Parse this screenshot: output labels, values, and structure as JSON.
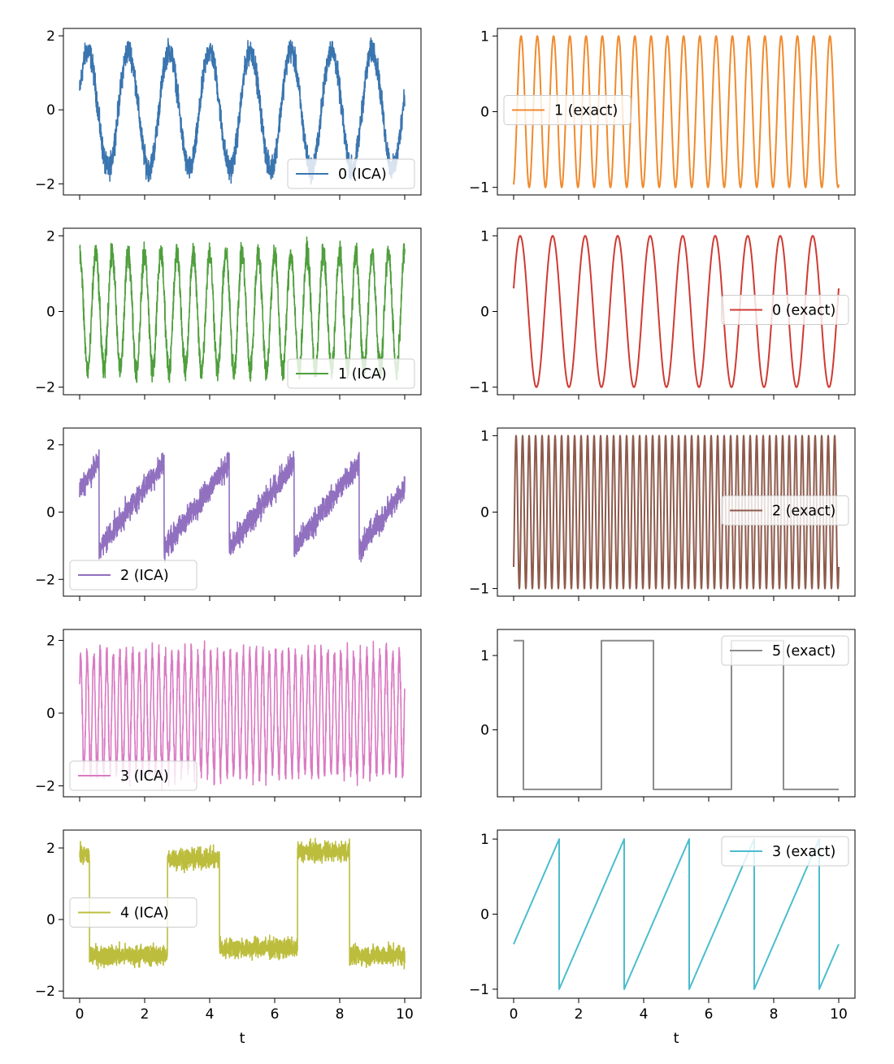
{
  "chart_data": [
    {
      "type": "line",
      "series": [
        {
          "name": "0 (ICA)",
          "color": "#3a75b0",
          "shape": "sine",
          "freq": 0.8,
          "phase": 0.31,
          "amp": 1.6,
          "offset": 0.0,
          "noise": 0.4
        }
      ],
      "xlim": [
        -0.5,
        10.5
      ],
      "ylim": [
        -2.3,
        2.2
      ],
      "yticks": [
        -2,
        0,
        2
      ],
      "xticks": [
        0,
        2,
        4,
        6,
        8,
        10
      ],
      "legend": "lower-right",
      "xlabel": ""
    },
    {
      "type": "line",
      "series": [
        {
          "name": "1 (exact)",
          "color": "#f08a2d",
          "shape": "sine",
          "freq": 2.0,
          "phase": -1.3,
          "amp": 1.0,
          "offset": 0.0,
          "noise": 0.0
        }
      ],
      "xlim": [
        -0.5,
        10.5
      ],
      "ylim": [
        -1.1,
        1.1
      ],
      "yticks": [
        -1,
        0,
        1
      ],
      "xticks": [
        0,
        2,
        4,
        6,
        8,
        10
      ],
      "legend": "center-left",
      "xlabel": ""
    },
    {
      "type": "line",
      "series": [
        {
          "name": "1 (ICA)",
          "color": "#4f9f3d",
          "shape": "sine",
          "freq": 2.0,
          "phase": 1.6,
          "amp": 1.55,
          "offset": 0.0,
          "noise": 0.4
        }
      ],
      "xlim": [
        -0.5,
        10.5
      ],
      "ylim": [
        -2.2,
        2.2
      ],
      "yticks": [
        -2,
        0,
        2
      ],
      "xticks": [
        0,
        2,
        4,
        6,
        8,
        10
      ],
      "legend": "lower-right",
      "xlabel": ""
    },
    {
      "type": "line",
      "series": [
        {
          "name": "0 (exact)",
          "color": "#cf3a33",
          "shape": "sine",
          "freq": 1.0,
          "phase": 0.31,
          "amp": 1.0,
          "offset": 0.0,
          "noise": 0.0
        }
      ],
      "xlim": [
        -0.5,
        10.5
      ],
      "ylim": [
        -1.1,
        1.1
      ],
      "yticks": [
        -1,
        0,
        1
      ],
      "xticks": [
        0,
        2,
        4,
        6,
        8,
        10
      ],
      "legend": "center-right",
      "xlabel": ""
    },
    {
      "type": "line",
      "series": [
        {
          "name": "2 (ICA)",
          "color": "#9170c0",
          "shape": "saw",
          "period": 2.0,
          "start": 0.6,
          "amp": 1.3,
          "offset": 0.2,
          "noise": 0.45
        }
      ],
      "xlim": [
        -0.5,
        10.5
      ],
      "ylim": [
        -2.5,
        2.5
      ],
      "yticks": [
        -2,
        0,
        2
      ],
      "xticks": [
        0,
        2,
        4,
        6,
        8,
        10
      ],
      "legend": "lower-left",
      "xlabel": ""
    },
    {
      "type": "line",
      "series": [
        {
          "name": "2 (exact)",
          "color": "#8d5a4b",
          "shape": "sine",
          "freq": 5.0,
          "phase": -0.8,
          "amp": 1.0,
          "offset": 0.0,
          "noise": 0.0
        }
      ],
      "xlim": [
        -0.5,
        10.5
      ],
      "ylim": [
        -1.1,
        1.1
      ],
      "yticks": [
        -1,
        0,
        1
      ],
      "xticks": [
        0,
        2,
        4,
        6,
        8,
        10
      ],
      "legend": "center-right",
      "xlabel": ""
    },
    {
      "type": "line",
      "series": [
        {
          "name": "3 (ICA)",
          "color": "#d97ac2",
          "shape": "sine",
          "freq": 5.0,
          "phase": 0.5,
          "amp": 1.6,
          "offset": 0.0,
          "noise": 0.45
        }
      ],
      "xlim": [
        -0.5,
        10.5
      ],
      "ylim": [
        -2.3,
        2.3
      ],
      "yticks": [
        -2,
        0,
        2
      ],
      "xticks": [
        0,
        2,
        4,
        6,
        8,
        10
      ],
      "legend": "lower-left",
      "xlabel": ""
    },
    {
      "type": "line",
      "series": [
        {
          "name": "5 (exact)",
          "color": "#8c8c8c",
          "shape": "square",
          "segments": [
            [
              0.0,
              0.3,
              1.2
            ],
            [
              0.3,
              2.7,
              -0.8
            ],
            [
              2.7,
              4.3,
              1.2
            ],
            [
              4.3,
              6.7,
              -0.8
            ],
            [
              6.7,
              8.3,
              1.2
            ],
            [
              8.3,
              10.0,
              -0.8
            ]
          ]
        }
      ],
      "xlim": [
        -0.5,
        10.5
      ],
      "ylim": [
        -0.9,
        1.35
      ],
      "yticks": [
        0,
        1
      ],
      "xticks": [
        0,
        2,
        4,
        6,
        8,
        10
      ],
      "legend": "upper-right",
      "xlabel": ""
    },
    {
      "type": "line",
      "series": [
        {
          "name": "4 (ICA)",
          "color": "#bcbd3c",
          "shape": "square",
          "segments": [
            [
              0.0,
              0.3,
              1.8
            ],
            [
              0.3,
              2.7,
              -1.0
            ],
            [
              2.7,
              4.3,
              1.7
            ],
            [
              4.3,
              6.7,
              -0.8
            ],
            [
              6.7,
              8.3,
              1.9
            ],
            [
              8.3,
              10.0,
              -1.0
            ]
          ],
          "noise": 0.35
        }
      ],
      "xlim": [
        -0.5,
        10.5
      ],
      "ylim": [
        -2.2,
        2.5
      ],
      "yticks": [
        -2,
        0,
        2
      ],
      "xticks": [
        0,
        2,
        4,
        6,
        8,
        10
      ],
      "legend": "center-left",
      "xlabel": "t"
    },
    {
      "type": "line",
      "series": [
        {
          "name": "3 (exact)",
          "color": "#4bbdcf",
          "shape": "saw",
          "period": 2.0,
          "start": 1.4,
          "amp": 1.0,
          "offset": 0.0,
          "noise": 0.0
        }
      ],
      "xlim": [
        -0.5,
        10.5
      ],
      "ylim": [
        -1.12,
        1.12
      ],
      "yticks": [
        -1,
        0,
        1
      ],
      "xticks": [
        0,
        2,
        4,
        6,
        8,
        10
      ],
      "legend": "upper-right",
      "xlabel": "t"
    }
  ]
}
